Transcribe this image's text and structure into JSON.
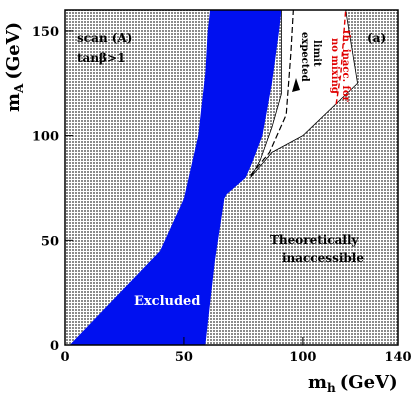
{
  "chart_data": {
    "type": "area",
    "panel_label": "(a)",
    "xlabel": "m_h (GeV)",
    "ylabel": "m_A (GeV)",
    "xlim": [
      0,
      140
    ],
    "ylim": [
      0,
      160
    ],
    "x_ticks": [
      0,
      50,
      100,
      140
    ],
    "y_ticks": [
      0,
      50,
      100,
      150
    ],
    "annotations": {
      "scan": "scan (A)",
      "tanbeta": "tanβ>1",
      "excluded": "Excluded",
      "theoretically": "Theoretically",
      "inaccessible": "inaccessible",
      "expected1": "expected",
      "expected2": "limit",
      "th_inacc1": "th. inacc. for",
      "th_inacc2": "no mixing"
    },
    "regions": {
      "theoretically_inaccessible_color": "#9a9a9a",
      "excluded_color": "#0010f0",
      "allowed_color": "#ffffff",
      "excluded_left_boundary": [
        [
          2,
          0
        ],
        [
          40,
          45
        ],
        [
          50,
          70
        ],
        [
          56,
          100
        ],
        [
          59,
          130
        ],
        [
          60,
          150
        ],
        [
          61,
          160
        ]
      ],
      "excluded_right_boundary": [
        [
          59,
          0
        ],
        [
          61,
          20
        ],
        [
          63,
          40
        ],
        [
          67,
          70
        ],
        [
          68,
          72
        ],
        [
          74,
          78
        ],
        [
          76,
          80
        ],
        [
          79,
          88
        ],
        [
          83,
          100
        ],
        [
          87,
          125
        ],
        [
          90,
          150
        ],
        [
          91,
          160
        ]
      ],
      "allowed_region_boundary": [
        [
          91,
          160
        ],
        [
          118,
          160
        ],
        [
          123,
          125
        ],
        [
          100,
          100
        ],
        [
          87,
          92
        ],
        [
          78,
          80
        ],
        [
          82,
          88
        ],
        [
          87,
          104
        ],
        [
          89,
          112
        ],
        [
          91,
          120
        ],
        [
          91,
          160
        ]
      ],
      "expected_limit_curve": [
        [
          78,
          81
        ],
        [
          86,
          92
        ],
        [
          93,
          110
        ],
        [
          94,
          125
        ],
        [
          95,
          140
        ],
        [
          96,
          160
        ]
      ],
      "th_inacc_no_mixing_curve": [
        [
          114,
          115
        ],
        [
          116,
          130
        ],
        [
          117,
          145
        ],
        [
          118,
          160
        ]
      ]
    }
  }
}
